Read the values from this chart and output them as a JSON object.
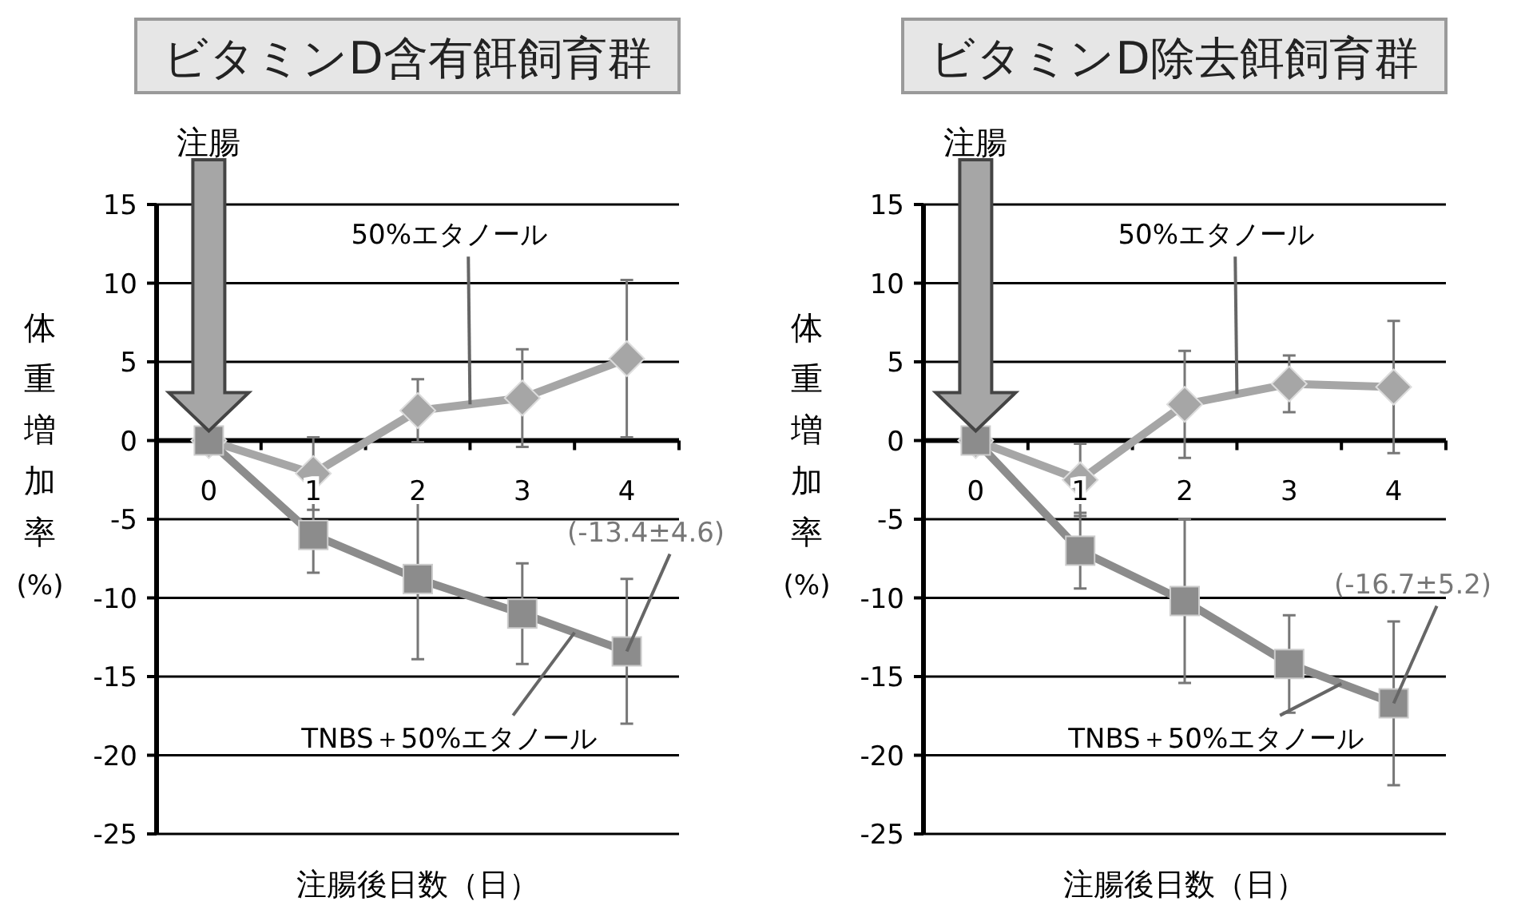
{
  "chart_data": [
    {
      "type": "line",
      "title": "ビタミンD含有餌飼育群",
      "xlabel": "注腸後日数（日）",
      "ylabel": "体重増加率$_{(%)}$",
      "categories": [
        "0",
        "1",
        "2",
        "3",
        "4"
      ],
      "ylim": [
        -25,
        15
      ],
      "yticks": [
        -25,
        -20,
        -15,
        -10,
        -5,
        0,
        5,
        10,
        15
      ],
      "grid": "y",
      "series": [
        {
          "name": "50%エタノール",
          "color": "#a6a6a6",
          "marker": "diamond",
          "values": [
            0,
            -2.1,
            1.9,
            2.7,
            5.2
          ],
          "errors": [
            null,
            2.3,
            2.0,
            3.1,
            5.0
          ]
        },
        {
          "name": "TNBS＋50%エタノール",
          "color": "#8c8c8c",
          "marker": "square",
          "values": [
            0,
            -6.0,
            -8.8,
            -11.0,
            -13.4
          ],
          "errors": [
            null,
            2.4,
            5.1,
            3.2,
            4.6
          ]
        }
      ],
      "annotations": [
        "注腸",
        {
          "text": "(-13.4±4.6)",
          "x": "4",
          "y": -13.4
        }
      ]
    },
    {
      "type": "line",
      "title": "ビタミンD除去餌飼育群",
      "xlabel": "注腸後日数（日）",
      "ylabel": "体重増加率$_{(%)}$",
      "categories": [
        "0",
        "1",
        "2",
        "3",
        "4"
      ],
      "ylim": [
        -25,
        15
      ],
      "yticks": [
        -25,
        -20,
        -15,
        -10,
        -5,
        0,
        5,
        10,
        15
      ],
      "grid": "y",
      "series": [
        {
          "name": "50%エタノール",
          "color": "#a6a6a6",
          "marker": "diamond",
          "values": [
            0,
            -2.5,
            2.3,
            3.6,
            3.4
          ],
          "errors": [
            null,
            2.3,
            3.4,
            1.8,
            4.2
          ]
        },
        {
          "name": "TNBS＋50%エタノール",
          "color": "#8c8c8c",
          "marker": "square",
          "values": [
            0,
            -7.0,
            -10.2,
            -14.2,
            -16.7
          ],
          "errors": [
            null,
            2.4,
            5.2,
            3.1,
            5.2
          ]
        }
      ],
      "annotations": [
        "注腸",
        {
          "text": "(-16.7±5.2)",
          "x": "4",
          "y": -16.7
        }
      ]
    }
  ]
}
